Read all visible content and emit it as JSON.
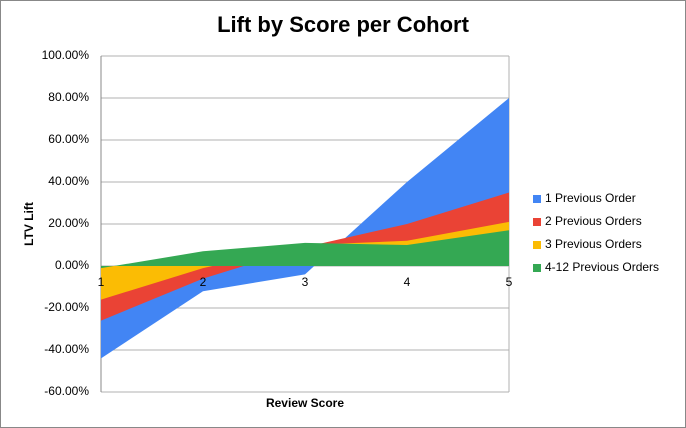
{
  "chart_data": {
    "type": "area",
    "title": "Lift by Score per Cohort",
    "x_label": "Review Score",
    "y_label": "LTV Lift",
    "x": [
      1,
      2,
      3,
      4,
      5
    ],
    "xlim": [
      1,
      5
    ],
    "xticks": [
      1,
      2,
      3,
      4,
      5
    ],
    "ylim": [
      -60,
      100
    ],
    "yticks": [
      {
        "value": -60,
        "label": "-60.00%"
      },
      {
        "value": -40,
        "label": "-40.00%"
      },
      {
        "value": -20,
        "label": "-20.00%"
      },
      {
        "value": 0,
        "label": "0.00%"
      },
      {
        "value": 20,
        "label": "20.00%"
      },
      {
        "value": 40,
        "label": "40.00%"
      },
      {
        "value": 60,
        "label": "60.00%"
      },
      {
        "value": 80,
        "label": "80.00%"
      },
      {
        "value": 100,
        "label": "100.00%"
      }
    ],
    "grid": true,
    "legend": "right",
    "series": [
      {
        "name": "1 Previous Order",
        "color": "#4285f4",
        "values": [
          -44,
          -12,
          -4,
          40,
          80
        ]
      },
      {
        "name": "2 Previous Orders",
        "color": "#ea4335",
        "values": [
          -26,
          -6,
          9,
          20,
          35
        ]
      },
      {
        "name": "3 Previous Orders",
        "color": "#fbbc04",
        "values": [
          -16,
          -1,
          10,
          12,
          21
        ]
      },
      {
        "name": "4-12 Previous Orders",
        "color": "#34a853",
        "values": [
          -1,
          7,
          11,
          10,
          17
        ]
      }
    ]
  }
}
